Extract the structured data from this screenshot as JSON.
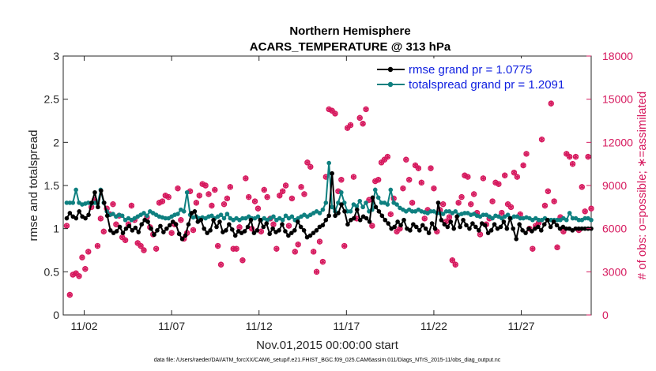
{
  "chart_data": {
    "type": "line",
    "title": "Northern Hemisphere",
    "subtitle": "ACARS_TEMPERATURE @ 313 hPa",
    "xlabel": "Nov.01,2015 00:00:00 start",
    "ylabel_left": "rmse and totalspread",
    "ylabel_right": "# of obs: o=possible; ∗=assimilated",
    "footnote": "data file: /Users/raeder/DAI/ATM_forcXX/CAM6_setup/f.e21.FHIST_BGC.f09_025.CAM6assim.011/Diags_NTrS_2015-11/obs_diag_output.nc",
    "x_ticks": [
      "11/02",
      "11/07",
      "11/12",
      "11/17",
      "11/22",
      "11/27"
    ],
    "x_tick_days": [
      2,
      7,
      12,
      17,
      22,
      27
    ],
    "xlim": [
      0.8,
      31.0
    ],
    "ylim_left": [
      0,
      3
    ],
    "y_ticks_left": [
      "0",
      "0.5",
      "1",
      "1.5",
      "2",
      "2.5",
      "3"
    ],
    "ylim_right": [
      0,
      18000
    ],
    "y_ticks_right": [
      "0",
      "3000",
      "6000",
      "9000",
      "12000",
      "15000",
      "18000"
    ],
    "colors": {
      "rmse": "#000000",
      "spread": "#0f8080",
      "obs": "#d6195e",
      "legend_text": "#1020e0"
    },
    "series": [
      {
        "name": "rmse grand pr = 1.0775",
        "axis": "left",
        "values": [
          1.12,
          1.18,
          1.14,
          1.12,
          1.2,
          1.14,
          1.12,
          1.16,
          1.3,
          1.42,
          1.25,
          1.44,
          1.3,
          1.15,
          0.98,
          0.95,
          0.97,
          1.02,
          0.95,
          1.0,
          1.03,
          0.98,
          1.01,
          0.96,
          1.05,
          1.1,
          1.08,
          1.0,
          0.93,
          0.98,
          1.03,
          0.96,
          1.0,
          1.04,
          1.08,
          1.05,
          0.94,
          0.88,
          0.92,
          1.05,
          1.18,
          1.2,
          1.08,
          1.1,
          1.0,
          0.95,
          0.98,
          1.1,
          1.02,
          1.08,
          0.96,
          0.98,
          1.05,
          0.99,
          0.92,
          0.97,
          0.95,
          0.97,
          1.02,
          1.1,
          0.95,
          0.98,
          1.1,
          1.02,
          1.06,
          0.94,
          1.0,
          0.96,
          0.98,
          1.05,
          0.97,
          0.92,
          0.95,
          0.98,
          1.08,
          1.02,
          0.98,
          0.9,
          0.92,
          0.95,
          0.98,
          1.02,
          1.04,
          1.1,
          1.15,
          1.64,
          1.15,
          1.18,
          1.28,
          1.2,
          1.05,
          1.1,
          1.12,
          1.22,
          1.1,
          1.14,
          1.12,
          1.08,
          1.36,
          1.25,
          1.2,
          1.15,
          1.1,
          1.06,
          1.0,
          1.02,
          1.08,
          1.04,
          1.1,
          1.0,
          0.98,
          1.05,
          1.02,
          0.98,
          1.04,
          1.0,
          0.95,
          1.06,
          1.0,
          1.3,
          1.1,
          1.05,
          1.02,
          1.08,
          1.0,
          1.14,
          1.02,
          1.1,
          1.04,
          1.0,
          1.06,
          1.02,
          0.98,
          1.06,
          1.04,
          0.95,
          0.98,
          1.05,
          1.0,
          1.02,
          1.08,
          1.0,
          1.12,
          1.0,
          0.88,
          1.05,
          0.98,
          0.95,
          1.0,
          0.97,
          1.0,
          1.02,
          0.98,
          1.05,
          1.1,
          1.02,
          1.08,
          1.04,
          1.0,
          1.02,
          1.0,
          1.0,
          0.98,
          1.0,
          1.0,
          1.0,
          1.0,
          1.0,
          1.0
        ]
      },
      {
        "name": "totalspread grand pr = 1.2091",
        "axis": "left",
        "values": [
          1.3,
          1.3,
          1.3,
          1.45,
          1.3,
          1.28,
          1.29,
          1.3,
          1.29,
          1.3,
          1.29,
          1.45,
          1.3,
          1.2,
          1.16,
          1.17,
          1.14,
          1.16,
          1.15,
          1.1,
          1.12,
          1.1,
          1.12,
          1.14,
          1.16,
          1.18,
          1.15,
          1.2,
          1.18,
          1.16,
          1.14,
          1.13,
          1.12,
          1.12,
          1.14,
          1.16,
          1.17,
          1.22,
          1.2,
          1.42,
          1.16,
          1.13,
          1.14,
          1.12,
          1.13,
          1.12,
          1.14,
          1.15,
          1.12,
          1.14,
          1.16,
          1.12,
          1.17,
          1.12,
          1.1,
          1.12,
          1.1,
          1.12,
          1.12,
          1.14,
          1.12,
          1.12,
          1.14,
          1.1,
          1.12,
          1.1,
          1.12,
          1.14,
          1.1,
          1.12,
          1.1,
          1.15,
          1.12,
          1.14,
          1.1,
          1.12,
          1.14,
          1.16,
          1.14,
          1.16,
          1.18,
          1.2,
          1.18,
          1.22,
          1.3,
          1.76,
          1.25,
          1.2,
          1.3,
          1.42,
          1.3,
          1.2,
          1.2,
          1.28,
          1.26,
          1.32,
          1.25,
          1.3,
          1.2,
          1.22,
          1.45,
          1.36,
          1.3,
          1.3,
          1.28,
          1.45,
          1.3,
          1.28,
          1.24,
          1.22,
          1.2,
          1.22,
          1.2,
          1.2,
          1.22,
          1.2,
          1.19,
          1.18,
          1.2,
          1.2,
          1.18,
          1.18,
          1.17,
          1.2,
          1.2,
          1.18,
          1.2,
          1.16,
          1.17,
          1.18,
          1.18,
          1.16,
          1.17,
          1.15,
          1.14,
          1.16,
          1.16,
          1.14,
          1.12,
          1.15,
          1.14,
          1.12,
          1.14,
          1.16,
          1.12,
          1.14,
          1.14,
          1.12,
          1.12,
          1.13,
          1.12,
          1.1,
          1.12,
          1.1,
          1.1,
          1.12,
          1.1,
          1.1,
          1.1,
          1.1,
          1.1,
          1.12,
          1.1,
          1.18,
          1.12,
          1.12,
          1.1,
          1.1,
          1.12,
          1.12,
          1.1
        ]
      },
      {
        "name": "# of obs (possible / assimilated)",
        "axis": "right",
        "values": [
          6200,
          1400,
          2800,
          2900,
          2700,
          4000,
          3200,
          4400,
          7500,
          8000,
          4800,
          6700,
          5800,
          7400,
          7000,
          7700,
          6300,
          6900,
          5400,
          5200,
          6300,
          7600,
          6600,
          5000,
          4800,
          4500,
          6800,
          6100,
          5600,
          4600,
          7800,
          7900,
          8300,
          8200,
          5700,
          6300,
          8800,
          6600,
          5300,
          5700,
          8600,
          5900,
          7800,
          8300,
          9100,
          9000,
          8400,
          7600,
          8700,
          4800,
          3500,
          7700,
          8100,
          8900,
          4600,
          4600,
          6100,
          3800,
          9500,
          8200,
          6000,
          7900,
          7400,
          5800,
          8700,
          8200,
          6700,
          6300,
          4600,
          8300,
          8600,
          9000,
          6200,
          8100,
          4400,
          4900,
          8900,
          8400,
          10600,
          10300,
          4400,
          3000,
          5100,
          3700,
          9600,
          14300,
          14200,
          14000,
          8600,
          9400,
          4800,
          13000,
          13200,
          9600,
          6700,
          13700,
          13300,
          14300,
          8000,
          6200,
          9300,
          9400,
          10600,
          10800,
          11000,
          7000,
          8100,
          5800,
          6000,
          8800,
          10800,
          9400,
          7800,
          10400,
          10200,
          9200,
          6700,
          7300,
          10200,
          8800,
          5800,
          7300,
          7700,
          6500,
          6800,
          3800,
          3500,
          7800,
          8200,
          9700,
          9600,
          7700,
          8400,
          7100,
          5600,
          9500,
          6300,
          6700,
          7900,
          9200,
          9100,
          7100,
          9700,
          7700,
          7500,
          9900,
          9600,
          7000,
          10400,
          11200,
          6000,
          4600,
          6200,
          6400,
          12200,
          7600,
          8600,
          14700,
          7900,
          4700,
          6800,
          5800,
          11200,
          11000,
          10500,
          11000,
          5900,
          8900,
          7200,
          11000,
          7400
        ]
      }
    ],
    "legend": [
      "rmse grand pr = 1.0775",
      "totalspread grand pr = 1.2091"
    ],
    "legend_position": "top-right"
  }
}
